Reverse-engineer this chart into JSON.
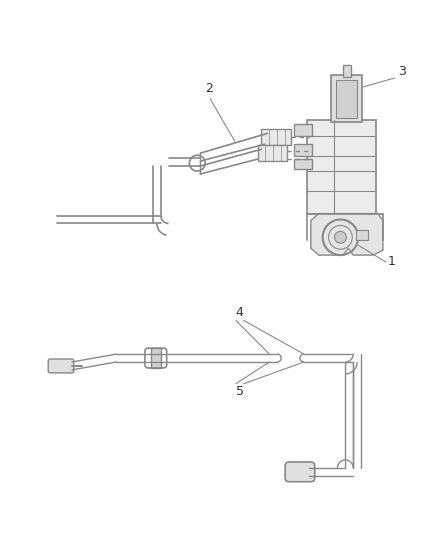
{
  "bg_color": "#ffffff",
  "line_color": "#888888",
  "dark_line": "#555555",
  "label_color": "#333333",
  "figsize": [
    4.38,
    5.33
  ],
  "dpi": 100,
  "upper": {
    "tube_lw": 2.0,
    "detail_lw": 1.0
  },
  "lower": {
    "tube_lw": 2.0,
    "detail_lw": 1.0
  }
}
